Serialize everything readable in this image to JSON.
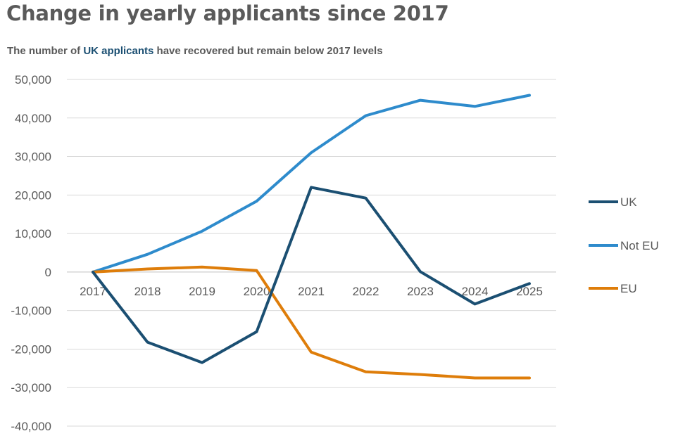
{
  "title_text": "Change in yearly applicants since 2017",
  "subtitle": {
    "prefix": "The number of ",
    "highlight": "UK applicants",
    "suffix": " have recovered but remain below 2017 levels"
  },
  "chart_data": {
    "type": "line",
    "title": "Change in yearly applicants since 2017",
    "x": [
      "2017",
      "2018",
      "2019",
      "2020",
      "2021",
      "2022",
      "2023",
      "2024",
      "2025"
    ],
    "ylim": [
      -40000,
      50000
    ],
    "yticks": [
      50000,
      40000,
      30000,
      20000,
      10000,
      0,
      -10000,
      -20000,
      -30000,
      -40000
    ],
    "ytick_labels": [
      "50,000",
      "40,000",
      "30,000",
      "20,000",
      "10,000",
      "0",
      "-10,000",
      "-20,000",
      "-30,000",
      "-40,000"
    ],
    "grid": true,
    "legend_position": "right",
    "series": [
      {
        "name": "UK",
        "color": "#1b4f72",
        "values": [
          0,
          -18200,
          -23500,
          -15500,
          22000,
          19200,
          100,
          -8300,
          -3000
        ]
      },
      {
        "name": "Not EU",
        "color": "#2e8bcc",
        "values": [
          0,
          4600,
          10600,
          18400,
          31000,
          40600,
          44600,
          43000,
          45900
        ]
      },
      {
        "name": "EU",
        "color": "#de7d0a",
        "values": [
          0,
          800,
          1300,
          400,
          -20800,
          -25900,
          -26600,
          -27500,
          -27500
        ]
      }
    ]
  }
}
